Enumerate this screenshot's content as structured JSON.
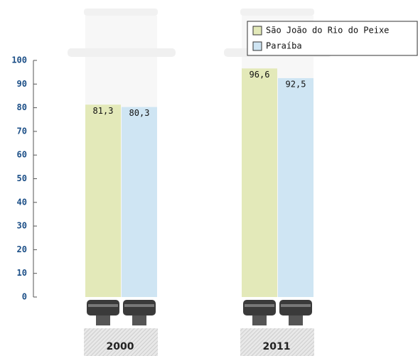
{
  "chart_data": {
    "type": "bar",
    "categories": [
      "2000",
      "2011"
    ],
    "series": [
      {
        "name": "São João do Rio do Peixe",
        "color": "#e3e9b9",
        "values": [
          81.3,
          96.6
        ],
        "value_labels": [
          "81,3",
          "96,6"
        ]
      },
      {
        "name": "Paraíba",
        "color": "#cfe5f3",
        "values": [
          80.3,
          92.5
        ],
        "value_labels": [
          "80,3",
          "92,5"
        ]
      }
    ],
    "ylim": [
      0,
      100
    ],
    "yticks": [
      0,
      10,
      20,
      30,
      40,
      50,
      60,
      70,
      80,
      90,
      100
    ],
    "legend": "top-right"
  }
}
